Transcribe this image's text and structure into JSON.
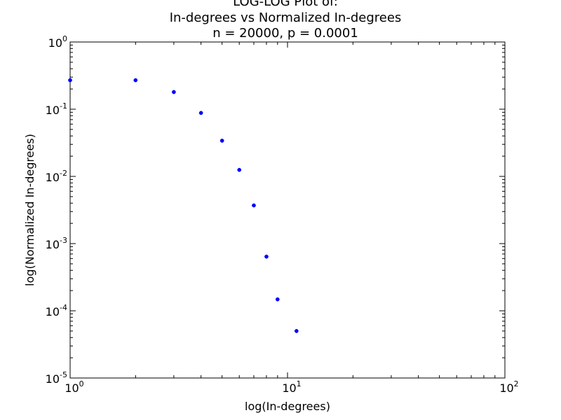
{
  "chart_data": {
    "type": "scatter",
    "title": [
      "LOG-LOG Plot of:",
      "In-degrees vs Normalized In-degrees",
      "n = 20000, p = 0.0001"
    ],
    "xlabel": "log(In-degrees)",
    "ylabel": "log(Normalized In-degrees)",
    "xscale": "log",
    "yscale": "log",
    "xlim": [
      1,
      100
    ],
    "ylim": [
      1e-05,
      1
    ],
    "x_ticks": [
      {
        "value": 1,
        "base": "10",
        "exp": "0"
      },
      {
        "value": 10,
        "base": "10",
        "exp": "1"
      },
      {
        "value": 100,
        "base": "10",
        "exp": "2"
      }
    ],
    "y_ticks": [
      {
        "value": 1,
        "base": "10",
        "exp": "0"
      },
      {
        "value": 0.1,
        "base": "10",
        "exp": "-1"
      },
      {
        "value": 0.01,
        "base": "10",
        "exp": "-2"
      },
      {
        "value": 0.001,
        "base": "10",
        "exp": "-3"
      },
      {
        "value": 0.0001,
        "base": "10",
        "exp": "-4"
      },
      {
        "value": 1e-05,
        "base": "10",
        "exp": "-5"
      }
    ],
    "grid": false,
    "legend": "none",
    "marker_color": "#0000ff",
    "series": [
      {
        "x": [
          1,
          2,
          3,
          4,
          5,
          6,
          7,
          8,
          9,
          11
        ],
        "y": [
          0.27,
          0.27,
          0.18,
          0.088,
          0.034,
          0.0125,
          0.0037,
          0.00064,
          0.000148,
          5e-05
        ]
      }
    ]
  }
}
